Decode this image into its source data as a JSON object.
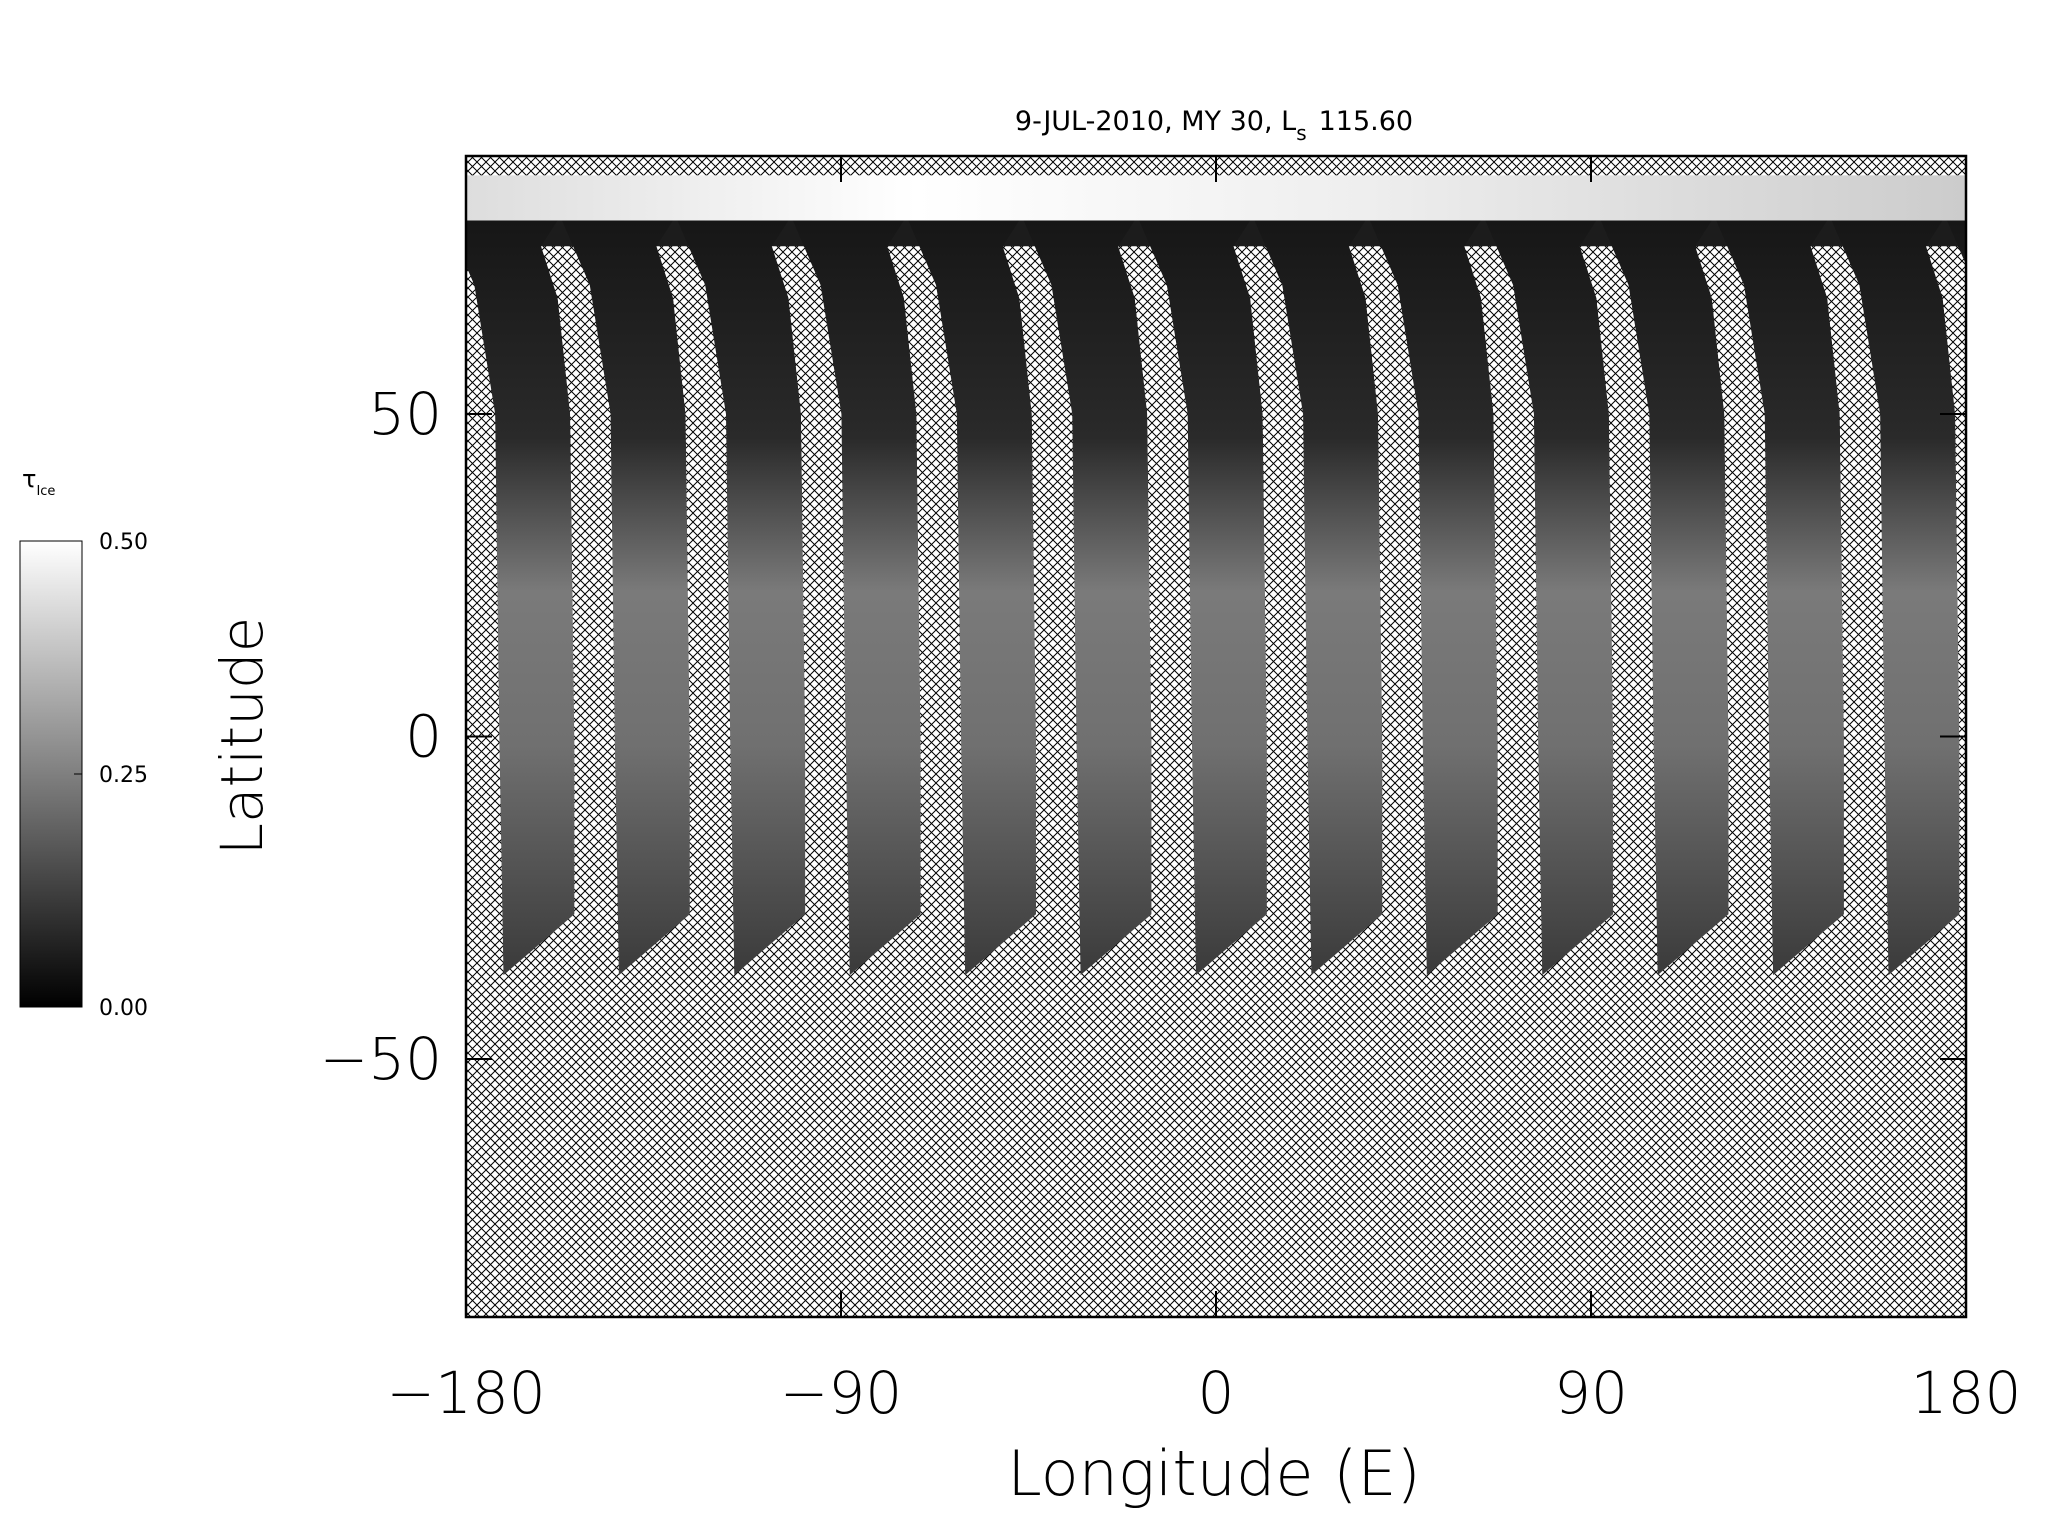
{
  "chart_data": {
    "type": "map",
    "title": {
      "prefix": "9-JUL-2010, MY 30,  L",
      "subscript": "s",
      "suffix": "115.60"
    },
    "xlabel": "Longitude (E)",
    "ylabel": "Latitude",
    "xlim": [
      -180,
      180
    ],
    "ylim": [
      -90,
      90
    ],
    "xticks": [
      {
        "value": -180,
        "label": "−180"
      },
      {
        "value": -90,
        "label": "−90"
      },
      0,
      90,
      180
    ],
    "yticks": [
      {
        "value": -50,
        "label": "−50"
      },
      0,
      50
    ],
    "colorbar": {
      "label": "τ",
      "label_subscript": "Ice",
      "lim": [
        0,
        0.5
      ],
      "ticks": [
        {
          "value": 0,
          "label": "0.00"
        },
        {
          "value": 0.25,
          "label": "0.25"
        },
        {
          "value": 0.5,
          "label": "0.50"
        }
      ],
      "colors": [
        "#000000",
        "#ffffff"
      ]
    }
  }
}
